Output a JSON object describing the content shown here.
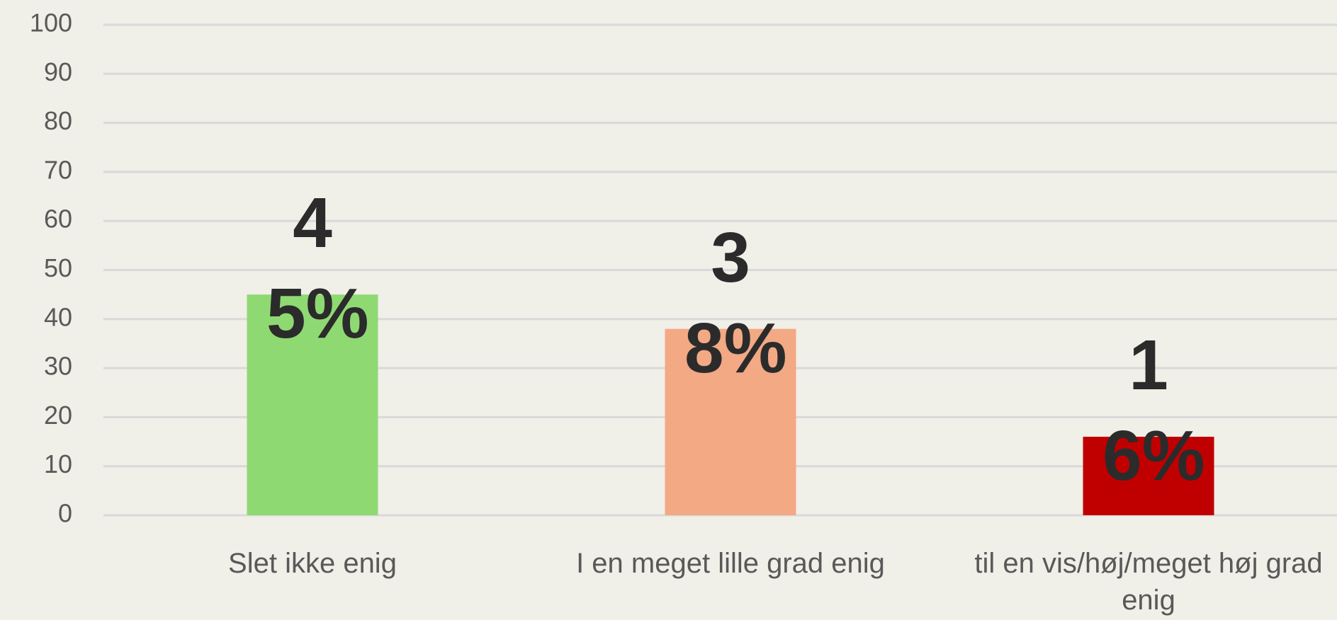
{
  "chart_data": {
    "type": "bar",
    "categories": [
      "Slet ikke enig",
      "I en meget lille grad enig",
      "til en vis/høj/meget høj grad enig"
    ],
    "values": [
      45,
      38,
      16
    ],
    "value_labels": [
      "45%",
      "38%",
      "16%"
    ],
    "colors": [
      "#8fd973",
      "#f2a984",
      "#c00000"
    ],
    "ylim": [
      0,
      100
    ],
    "yticks": [
      0,
      10,
      20,
      30,
      40,
      50,
      60,
      70,
      80,
      90,
      100
    ],
    "grid": true
  }
}
